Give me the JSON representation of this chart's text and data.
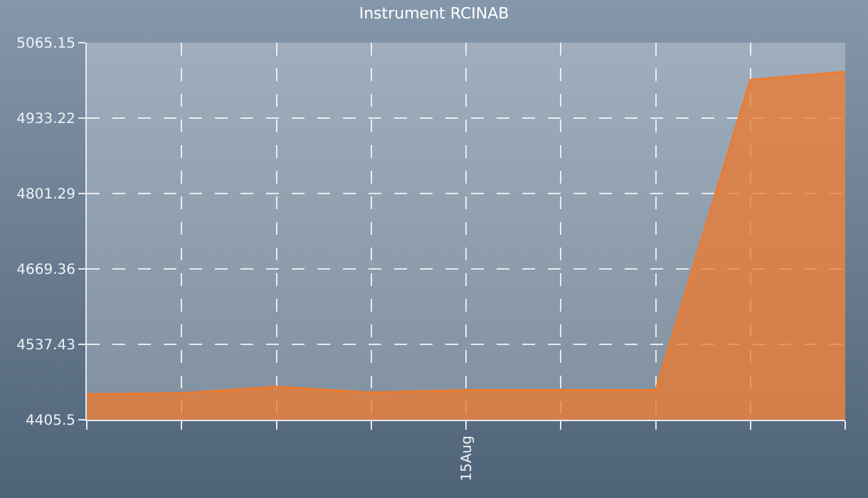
{
  "chart_data": {
    "type": "area",
    "title": "Instrument RCINAB",
    "categories": [
      null,
      null,
      null,
      null,
      "15Aug",
      null,
      null,
      null,
      null
    ],
    "series": [
      {
        "color": "#ee7a2e",
        "values": [
          4450,
          4452,
          4463,
          4453,
          4457,
          4457,
          4457,
          5000,
          5014
        ]
      }
    ],
    "ylim": [
      4405.5,
      5065.15
    ],
    "yticks": [
      4405.5,
      4537.43,
      4669.36,
      4801.29,
      4933.22,
      5065.15
    ],
    "grid": true
  }
}
